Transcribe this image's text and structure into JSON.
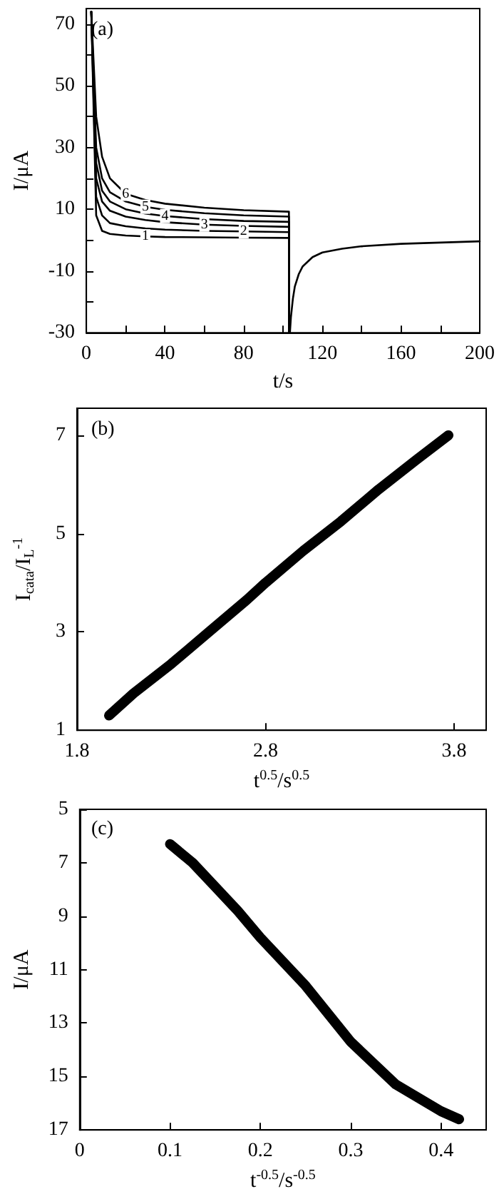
{
  "chart_data": [
    {
      "type": "line",
      "annotations": [
        "(a)"
      ],
      "xlabel": "t/s",
      "ylabel": "I/μA",
      "xlim": [
        0,
        200
      ],
      "ylim": [
        -30,
        75
      ],
      "xticks": [
        0,
        {
          "value": 20,
          "label": null
        },
        40,
        {
          "value": 60,
          "label": null
        },
        80,
        {
          "value": 100,
          "label": null
        },
        120,
        {
          "value": 140,
          "label": null
        },
        160,
        {
          "value": 180,
          "label": null
        },
        200
      ],
      "yticks": [
        -30,
        {
          "value": -20,
          "label": null
        },
        -10,
        {
          "value": 0,
          "label": null
        },
        10,
        {
          "value": 20,
          "label": null
        },
        30,
        {
          "value": 40,
          "label": null
        },
        50,
        {
          "value": 60,
          "label": null
        },
        70
      ],
      "grid": false,
      "legend": false,
      "marker": "none",
      "line_style": "solid",
      "series": [
        {
          "name": "1",
          "color": "#000000",
          "x": [
            2.5,
            5,
            8,
            12,
            20,
            30,
            40,
            60,
            80,
            103,
            103
          ],
          "values": [
            74,
            8,
            3,
            2,
            1.5,
            1.2,
            1.0,
            0.9,
            0.8,
            0.7,
            -30
          ]
        },
        {
          "name": "2",
          "color": "#000000",
          "x": [
            2.5,
            5,
            8,
            12,
            20,
            30,
            40,
            60,
            80,
            103,
            103
          ],
          "values": [
            74,
            14,
            8,
            5.5,
            4.5,
            3.8,
            3.4,
            3,
            2.8,
            2.6,
            -30
          ]
        },
        {
          "name": "3",
          "color": "#000000",
          "x": [
            2.5,
            5,
            8,
            12,
            20,
            30,
            40,
            60,
            80,
            103,
            103
          ],
          "values": [
            74,
            20,
            12.5,
            9.5,
            7.6,
            6.5,
            5.8,
            5,
            4.6,
            4.3,
            -30
          ]
        },
        {
          "name": "4",
          "color": "#000000",
          "x": [
            2.5,
            5,
            8,
            12,
            20,
            30,
            40,
            60,
            80,
            103,
            103
          ],
          "values": [
            74,
            25,
            16,
            12.5,
            10,
            8.6,
            7.8,
            6.8,
            6.2,
            5.9,
            -30
          ]
        },
        {
          "name": "5",
          "color": "#000000",
          "x": [
            2.5,
            5,
            8,
            12,
            20,
            30,
            40,
            60,
            80,
            103,
            103
          ],
          "values": [
            74,
            30,
            20,
            15.5,
            12.5,
            10.8,
            9.8,
            8.7,
            8,
            7.6,
            -30
          ]
        },
        {
          "name": "6",
          "color": "#000000",
          "x": [
            2.5,
            5,
            8,
            12,
            20,
            30,
            40,
            60,
            80,
            103,
            103
          ],
          "values": [
            74,
            40,
            27,
            20,
            15,
            13,
            11.8,
            10.5,
            9.7,
            9.2,
            -30
          ]
        },
        {
          "color": "#000000",
          "x": [
            103.5,
            104,
            105,
            106,
            108,
            110,
            115,
            120,
            130,
            140,
            160,
            180,
            200
          ],
          "values": [
            -30,
            -25,
            -19,
            -15,
            -11,
            -8.5,
            -5.5,
            -4,
            -2.8,
            -2,
            -1.2,
            -0.8,
            -0.4
          ]
        }
      ]
    },
    {
      "type": "line",
      "annotations": [
        "(b)"
      ],
      "xlabel": "t$^{0.5}$/s$^{0.5}$",
      "ylabel": "I$_{cata}$/I$_{L}$$^{-1}$",
      "xlim": [
        1.8,
        3.97
      ],
      "ylim": [
        1,
        7.55
      ],
      "xticks": [
        1.8,
        2.8,
        3.8
      ],
      "yticks": [
        1,
        3,
        5,
        7
      ],
      "grid": false,
      "legend": false,
      "marker": "none",
      "line_style": "solid",
      "series": [
        {
          "color": "#000000",
          "x": [
            1.97,
            2.1,
            2.3,
            2.5,
            2.7,
            2.8,
            3.0,
            3.2,
            3.4,
            3.6,
            3.77
          ],
          "values": [
            1.3,
            1.75,
            2.35,
            3.0,
            3.65,
            4.0,
            4.65,
            5.25,
            5.9,
            6.5,
            7.0
          ]
        }
      ]
    },
    {
      "type": "line",
      "annotations": [
        "(c)"
      ],
      "xlabel": "t$^{-0.5}$/s$^{-0.5}$",
      "ylabel": "I/μA",
      "xlim": [
        0,
        0.45
      ],
      "ylim": [
        17,
        5
      ],
      "xticks": [
        0,
        0.1,
        0.2,
        0.3,
        0.4
      ],
      "yticks": [
        5,
        7,
        9,
        11,
        13,
        15,
        17
      ],
      "grid": false,
      "legend": false,
      "marker": "none",
      "line_style": "solid",
      "series": [
        {
          "color": "#000000",
          "x": [
            0.1,
            0.125,
            0.15,
            0.175,
            0.2,
            0.25,
            0.3,
            0.35,
            0.4,
            0.42
          ],
          "values": [
            6.3,
            7.0,
            7.9,
            8.8,
            9.8,
            11.6,
            13.7,
            15.3,
            16.3,
            16.6
          ]
        }
      ]
    }
  ]
}
